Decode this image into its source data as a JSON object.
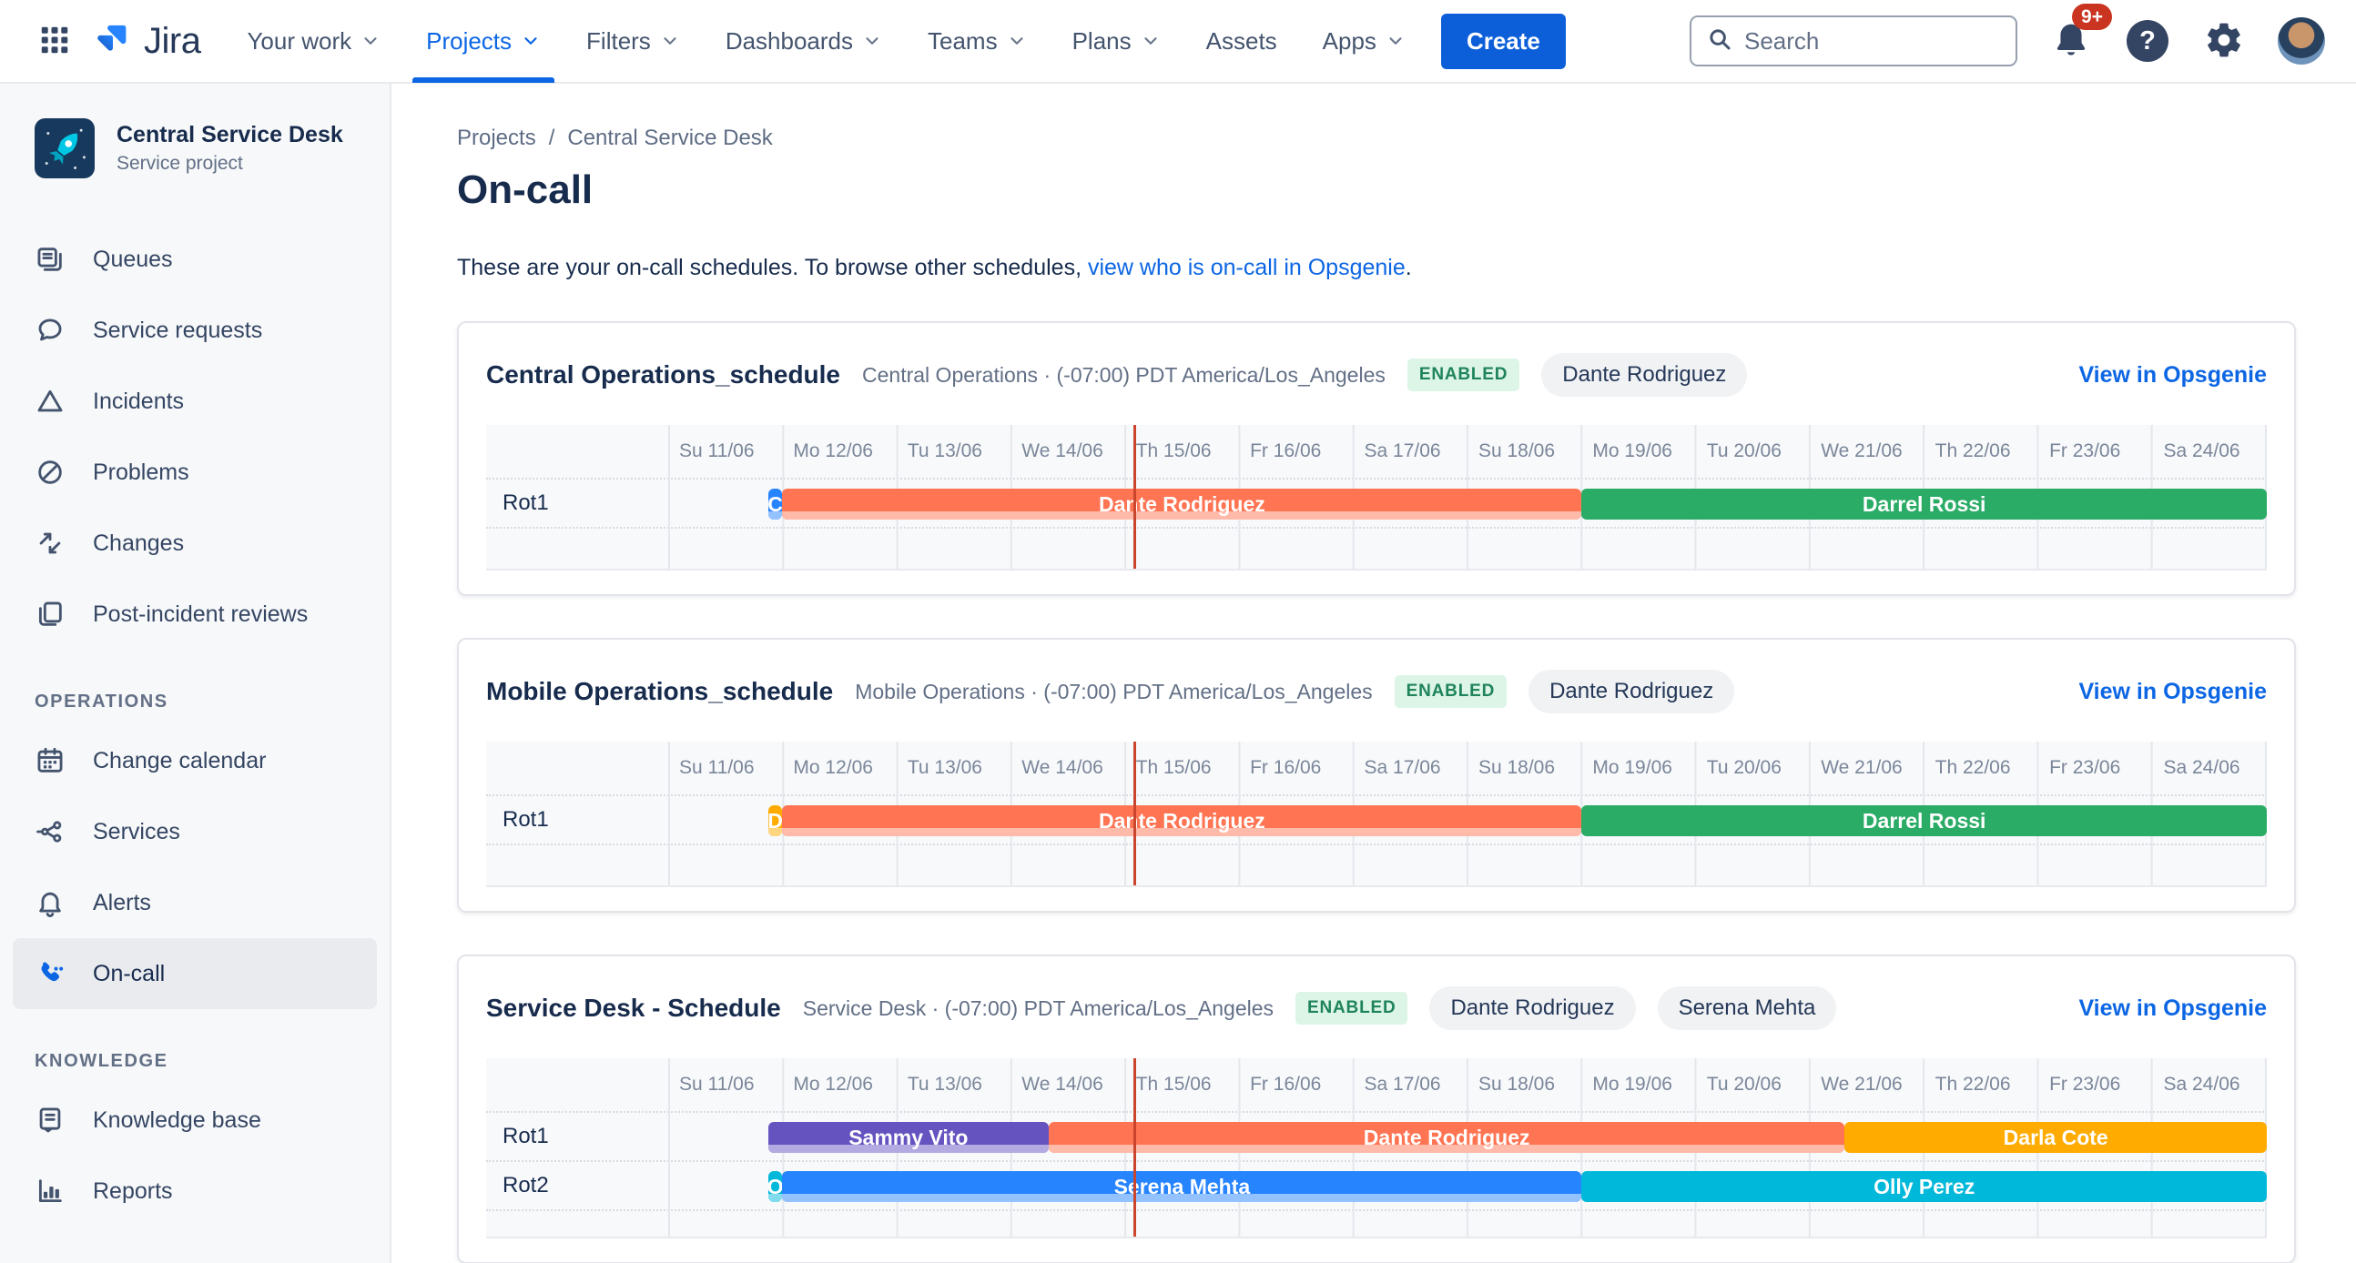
{
  "nav": {
    "brand": "Jira",
    "items": [
      {
        "label": "Your work",
        "chevron": true,
        "active": false
      },
      {
        "label": "Projects",
        "chevron": true,
        "active": true
      },
      {
        "label": "Filters",
        "chevron": true,
        "active": false
      },
      {
        "label": "Dashboards",
        "chevron": true,
        "active": false
      },
      {
        "label": "Teams",
        "chevron": true,
        "active": false
      },
      {
        "label": "Plans",
        "chevron": true,
        "active": false
      },
      {
        "label": "Assets",
        "chevron": false,
        "active": false
      },
      {
        "label": "Apps",
        "chevron": true,
        "active": false
      }
    ],
    "create_label": "Create",
    "search_placeholder": "Search",
    "notifications_badge": "9+",
    "help_glyph": "?"
  },
  "sidebar": {
    "project": {
      "name": "Central Service Desk",
      "type": "Service project"
    },
    "main_items": [
      {
        "icon": "queues-icon",
        "label": "Queues"
      },
      {
        "icon": "service-requests-icon",
        "label": "Service requests"
      },
      {
        "icon": "incidents-icon",
        "label": "Incidents"
      },
      {
        "icon": "problems-icon",
        "label": "Problems"
      },
      {
        "icon": "changes-icon",
        "label": "Changes"
      },
      {
        "icon": "post-incident-reviews-icon",
        "label": "Post-incident reviews"
      }
    ],
    "sections": [
      {
        "title": "OPERATIONS",
        "items": [
          {
            "icon": "change-calendar-icon",
            "label": "Change calendar",
            "selected": false
          },
          {
            "icon": "services-icon",
            "label": "Services",
            "selected": false
          },
          {
            "icon": "alerts-icon",
            "label": "Alerts",
            "selected": false
          },
          {
            "icon": "on-call-icon",
            "label": "On-call",
            "selected": true
          }
        ]
      },
      {
        "title": "KNOWLEDGE",
        "items": [
          {
            "icon": "knowledge-base-icon",
            "label": "Knowledge base",
            "selected": false
          },
          {
            "icon": "reports-icon",
            "label": "Reports",
            "selected": false
          }
        ]
      }
    ]
  },
  "main": {
    "breadcrumb": [
      "Projects",
      "Central Service Desk"
    ],
    "page_title": "On-call",
    "intro_text": "These are your on-call schedules. To browse other schedules, ",
    "intro_link": "view who is on-call in Opsgenie",
    "intro_suffix": ".",
    "days": [
      "Su 11/06",
      "Mo 12/06",
      "Tu 13/06",
      "We 14/06",
      "Th 15/06",
      "Fr 16/06",
      "Sa 17/06",
      "Su 18/06",
      "Mo 19/06",
      "Tu 20/06",
      "We 21/06",
      "Th 22/06",
      "Fr 23/06",
      "Sa 24/06"
    ],
    "now_position_pct": 29.1,
    "now_line_color": "#C9462C",
    "schedules": [
      {
        "name": "Central Operations_schedule",
        "meta": "Central Operations · (-07:00) PDT America/Los_Angeles",
        "status": "ENABLED",
        "oncall_people": [
          "Dante Rodriguez"
        ],
        "link_label": "View in Opsgenie",
        "empty_row_height": 46,
        "rotations": [
          {
            "label": "Rot1",
            "shifts": [
              {
                "name": "C",
                "start_pct": 6.25,
                "end_pct": 7.14,
                "color": "#2684FF",
                "past": true
              },
              {
                "name": "Dante Rodriguez",
                "start_pct": 7.14,
                "end_pct": 57.14,
                "color": "#FF7452",
                "past": true
              },
              {
                "name": "Darrel Rossi",
                "start_pct": 57.14,
                "end_pct": 100,
                "color": "#2BAC66",
                "past": false
              }
            ]
          }
        ]
      },
      {
        "name": "Mobile Operations_schedule",
        "meta": "Mobile Operations · (-07:00) PDT America/Los_Angeles",
        "status": "ENABLED",
        "oncall_people": [
          "Dante Rodriguez"
        ],
        "link_label": "View in Opsgenie",
        "empty_row_height": 46,
        "rotations": [
          {
            "label": "Rot1",
            "shifts": [
              {
                "name": "D",
                "start_pct": 6.25,
                "end_pct": 7.14,
                "color": "#FFAB00",
                "past": true
              },
              {
                "name": "Dante Rodriguez",
                "start_pct": 7.14,
                "end_pct": 57.14,
                "color": "#FF7452",
                "past": true
              },
              {
                "name": "Darrel Rossi",
                "start_pct": 57.14,
                "end_pct": 100,
                "color": "#2BAC66",
                "past": false
              }
            ]
          }
        ]
      },
      {
        "name": "Service Desk - Schedule",
        "meta": "Service Desk · (-07:00) PDT America/Los_Angeles",
        "status": "ENABLED",
        "oncall_people": [
          "Dante Rodriguez",
          "Serena Mehta"
        ],
        "link_label": "View in Opsgenie",
        "empty_row_height": 30,
        "rotations": [
          {
            "label": "Rot1",
            "shifts": [
              {
                "name": "Sammy Vito",
                "start_pct": 6.25,
                "end_pct": 23.8,
                "color": "#6554C0",
                "past": true
              },
              {
                "name": "Dante Rodriguez",
                "start_pct": 23.8,
                "end_pct": 73.6,
                "color": "#FF7452",
                "past": true
              },
              {
                "name": "Darla Cote",
                "start_pct": 73.6,
                "end_pct": 100,
                "color": "#FFAB00",
                "past": false
              }
            ]
          },
          {
            "label": "Rot2",
            "shifts": [
              {
                "name": "O",
                "start_pct": 6.25,
                "end_pct": 7.14,
                "color": "#00B8D9",
                "past": true
              },
              {
                "name": "Serena Mehta",
                "start_pct": 7.14,
                "end_pct": 57.14,
                "color": "#2684FF",
                "past": true
              },
              {
                "name": "Olly Perez",
                "start_pct": 57.14,
                "end_pct": 100,
                "color": "#00B8D9",
                "past": false
              }
            ]
          }
        ]
      }
    ]
  },
  "colors": {
    "accent_blue": "#0C66E4",
    "enabled_bg": "#DCF5E7",
    "enabled_text": "#1F845A",
    "nav_text": "#44546E",
    "sidebar_bg": "#F7F8F9"
  }
}
